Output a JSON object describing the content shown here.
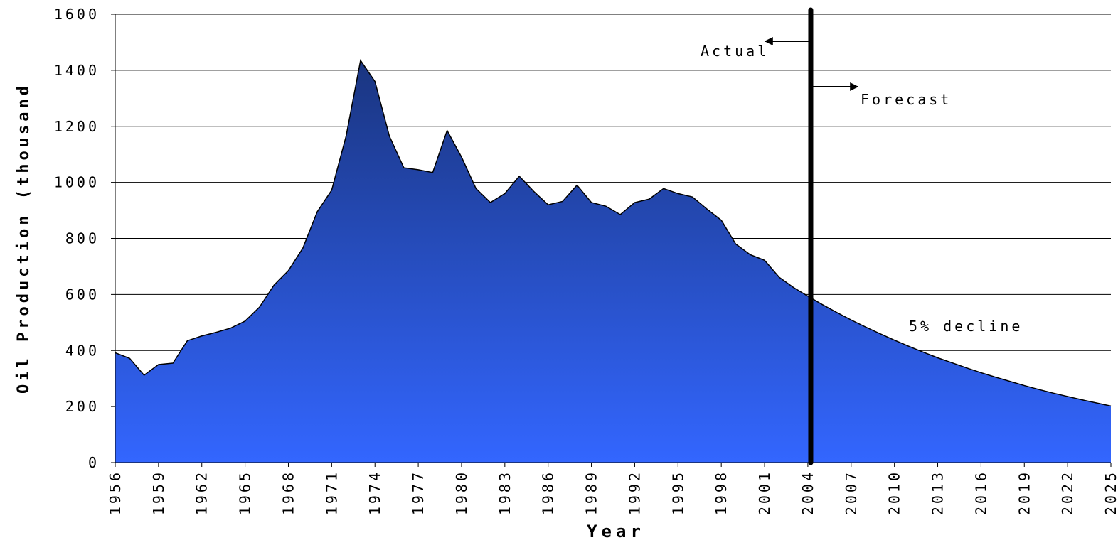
{
  "chart_data": {
    "type": "area",
    "x_label": "Year",
    "y_label": "Oil Production (thousand",
    "x": [
      1956,
      1957,
      1958,
      1959,
      1960,
      1961,
      1962,
      1963,
      1964,
      1965,
      1966,
      1967,
      1968,
      1969,
      1970,
      1971,
      1972,
      1973,
      1974,
      1975,
      1976,
      1977,
      1978,
      1979,
      1980,
      1981,
      1982,
      1983,
      1984,
      1985,
      1986,
      1987,
      1988,
      1989,
      1990,
      1991,
      1992,
      1993,
      1994,
      1995,
      1996,
      1997,
      1998,
      1999,
      2000,
      2001,
      2002,
      2003,
      2004,
      2005,
      2006,
      2007,
      2008,
      2009,
      2010,
      2011,
      2012,
      2013,
      2014,
      2015,
      2016,
      2017,
      2018,
      2019,
      2020,
      2021,
      2022,
      2023,
      2024,
      2025
    ],
    "values": [
      392,
      372,
      312,
      350,
      355,
      435,
      452,
      465,
      480,
      505,
      555,
      633,
      685,
      765,
      895,
      972,
      1165,
      1435,
      1360,
      1165,
      1052,
      1045,
      1035,
      1185,
      1090,
      978,
      928,
      960,
      1022,
      968,
      920,
      932,
      990,
      928,
      915,
      885,
      928,
      940,
      978,
      960,
      948,
      905,
      865,
      780,
      742,
      722,
      662,
      625,
      594,
      564,
      536,
      509,
      484,
      460,
      437,
      415,
      394,
      374,
      356,
      338,
      321,
      305,
      290,
      275,
      261,
      248,
      236,
      224,
      213,
      202
    ],
    "color_top": "#1a3580",
    "color_bottom": "#3366ff",
    "xlim": [
      1956,
      2025
    ],
    "xticks": [
      1956,
      1959,
      1962,
      1965,
      1968,
      1971,
      1974,
      1977,
      1980,
      1983,
      1986,
      1989,
      1992,
      1995,
      1998,
      2001,
      2004,
      2007,
      2010,
      2013,
      2016,
      2019,
      2022,
      2025
    ],
    "ylim": [
      0,
      1600
    ],
    "yticks": [
      0,
      200,
      400,
      600,
      800,
      1000,
      1200,
      1400,
      1600
    ],
    "grid": true,
    "forecast_start": 2004.2,
    "annotations": {
      "actual": "Actual",
      "forecast": "Forecast",
      "decline": "5% decline"
    }
  }
}
